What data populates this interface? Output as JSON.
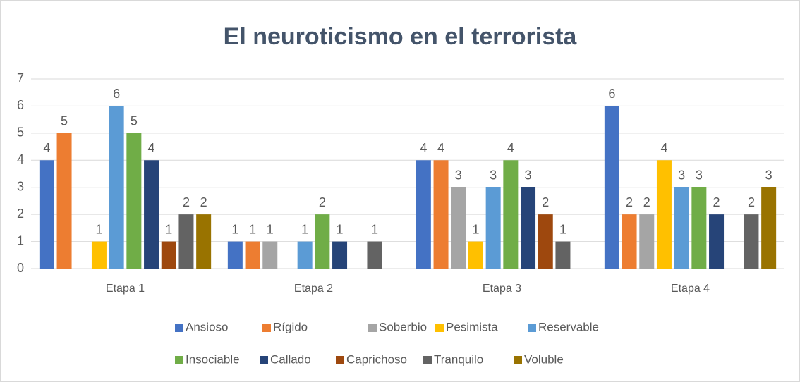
{
  "chart_data": {
    "type": "bar",
    "title": "El neuroticismo en el terrorista",
    "categories": [
      "Etapa 1",
      "Etapa 2",
      "Etapa 3",
      "Etapa 4"
    ],
    "series": [
      {
        "name": "Ansioso",
        "color": "#4472c4",
        "values": [
          4,
          1,
          4,
          6
        ]
      },
      {
        "name": "Rígido",
        "color": "#ed7d31",
        "values": [
          5,
          1,
          4,
          2
        ]
      },
      {
        "name": "Soberbio",
        "color": "#a5a5a5",
        "values": [
          null,
          1,
          3,
          2
        ]
      },
      {
        "name": "Pesimista",
        "color": "#ffc000",
        "values": [
          1,
          null,
          1,
          4
        ]
      },
      {
        "name": "Reservable",
        "color": "#5b9bd5",
        "values": [
          6,
          1,
          3,
          3
        ]
      },
      {
        "name": "Insociable",
        "color": "#70ad47",
        "values": [
          5,
          2,
          4,
          3
        ]
      },
      {
        "name": "Callado",
        "color": "#264478",
        "values": [
          4,
          1,
          3,
          2
        ]
      },
      {
        "name": "Caprichoso",
        "color": "#9e480e",
        "values": [
          1,
          null,
          2,
          null
        ]
      },
      {
        "name": "Tranquilo",
        "color": "#636363",
        "values": [
          2,
          1,
          1,
          2
        ]
      },
      {
        "name": "Voluble",
        "color": "#997300",
        "values": [
          2,
          null,
          null,
          3
        ]
      }
    ],
    "ylim": [
      0,
      7
    ],
    "yticks": [
      0,
      1,
      2,
      3,
      4,
      5,
      6,
      7
    ],
    "grid": true,
    "legend": "bottom"
  }
}
